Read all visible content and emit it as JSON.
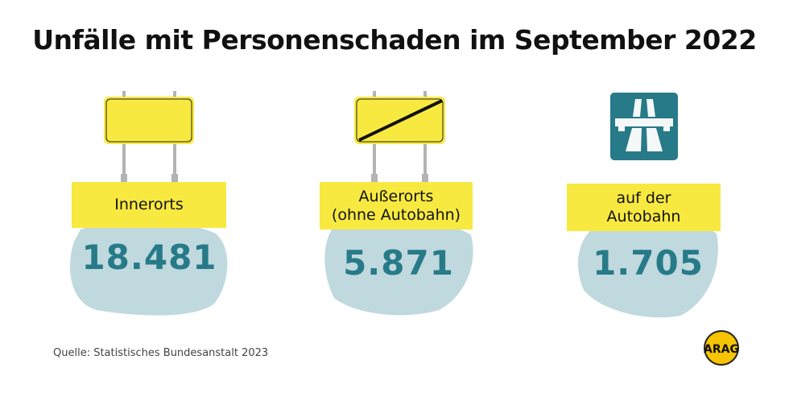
{
  "title": "Unfälle mit Personenschaden im September 2022",
  "panels": [
    {
      "label": "Innerorts",
      "value": "18.481",
      "icon": "town-entrance-sign-icon"
    },
    {
      "label": "Außerorts (ohne Autobahn)",
      "label_line1": "Außerorts",
      "label_line2": "(ohne Autobahn)",
      "value": "5.871",
      "icon": "town-exit-sign-icon"
    },
    {
      "label": "auf der Autobahn",
      "label_line1": "auf der",
      "label_line2": "Autobahn",
      "value": "1.705",
      "icon": "motorway-sign-icon"
    }
  ],
  "source": "Quelle:  Statistisches Bundesanstalt 2023",
  "logo": "ARAG",
  "colors": {
    "yellow": "#f8e941",
    "teal": "#277a88",
    "blob": "#bfd9de",
    "post": "#b3b3b3"
  }
}
